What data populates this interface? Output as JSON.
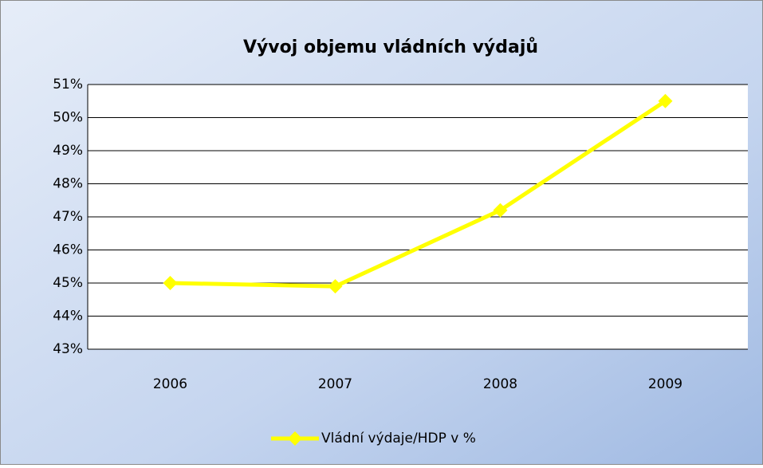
{
  "chart_data": {
    "type": "line",
    "title": "Vývoj objemu vládních výdajů",
    "categories": [
      "2006",
      "2007",
      "2008",
      "2009"
    ],
    "series": [
      {
        "name": "Vládní výdaje/HDP v %",
        "color": "#ffff00",
        "values": [
          45,
          44.9,
          47.2,
          50.5
        ]
      }
    ],
    "ylim": [
      43,
      51
    ],
    "yticks": [
      {
        "value": 43,
        "label": "43%"
      },
      {
        "value": 44,
        "label": "44%"
      },
      {
        "value": 45,
        "label": "45%"
      },
      {
        "value": 46,
        "label": "46%"
      },
      {
        "value": 47,
        "label": "47%"
      },
      {
        "value": 48,
        "label": "48%"
      },
      {
        "value": 49,
        "label": "49%"
      },
      {
        "value": 50,
        "label": "50%"
      },
      {
        "value": 51,
        "label": "51%"
      }
    ],
    "grid": true,
    "legend": "bottom"
  }
}
